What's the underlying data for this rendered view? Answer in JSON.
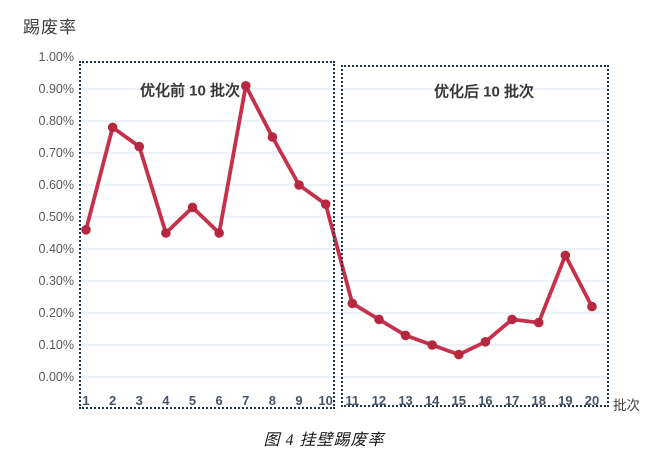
{
  "caption": "图 4  挂壁踢废率",
  "chart": {
    "y_axis_title": "踢废率",
    "x_axis_title": "批次",
    "annotation_before": "优化前 10 批次",
    "annotation_after": "优化后 10 批次"
  },
  "chart_data": {
    "type": "line",
    "title": "图 4 挂壁踢废率",
    "xlabel": "批次",
    "ylabel": "踢废率",
    "x": [
      1,
      2,
      3,
      4,
      5,
      6,
      7,
      8,
      9,
      10,
      11,
      12,
      13,
      14,
      15,
      16,
      17,
      18,
      19,
      20
    ],
    "values": [
      0.46,
      0.78,
      0.72,
      0.45,
      0.53,
      0.45,
      0.91,
      0.75,
      0.6,
      0.54,
      0.23,
      0.18,
      0.13,
      0.1,
      0.07,
      0.11,
      0.18,
      0.17,
      0.38,
      0.22
    ],
    "unit": "%",
    "ylim": [
      0.0,
      1.0
    ],
    "y_ticks": [
      "0.00%",
      "0.10%",
      "0.20%",
      "0.30%",
      "0.40%",
      "0.50%",
      "0.60%",
      "0.70%",
      "0.80%",
      "0.90%",
      "1.00%"
    ],
    "grid": true,
    "legend_position": "none",
    "annotations": [
      {
        "text": "优化前 10 批次",
        "x_range": [
          1,
          10
        ]
      },
      {
        "text": "优化后 10 批次",
        "x_range": [
          11,
          20
        ]
      }
    ]
  },
  "colors": {
    "line": "#c5314b",
    "marker": "#b5283f",
    "gridline": "#d9e5f1",
    "box_border": "#1f3747",
    "y_tick_text": "#595959",
    "x_tick_text": "#44546a"
  }
}
